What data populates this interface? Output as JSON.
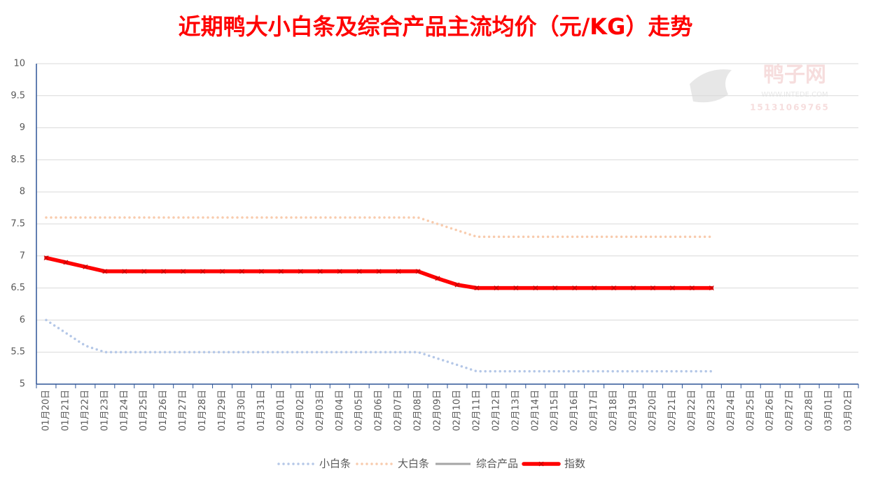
{
  "chart_data": {
    "type": "line",
    "title": "近期鸭大小白条及综合产品主流均价（元/KG）走势",
    "watermark": {
      "name": "鸭子网",
      "site": "WWW.INTEDE.COM",
      "phone": "15131069765"
    },
    "categories": [
      "01月20日",
      "01月21日",
      "01月22日",
      "01月23日",
      "01月24日",
      "01月25日",
      "01月26日",
      "01月27日",
      "01月28日",
      "01月29日",
      "01月30日",
      "01月31日",
      "02月01日",
      "02月02日",
      "02月03日",
      "02月04日",
      "02月05日",
      "02月06日",
      "02月07日",
      "02月08日",
      "02月09日",
      "02月10日",
      "02月11日",
      "02月12日",
      "02月13日",
      "02月14日",
      "02月15日",
      "02月16日",
      "02月17日",
      "02月18日",
      "02月19日",
      "02月20日",
      "02月21日",
      "02月22日",
      "02月23日",
      "02月24日",
      "02月25日",
      "02月26日",
      "02月27日",
      "02月28日",
      "03月01日",
      "03月02日"
    ],
    "series": [
      {
        "name": "小白条",
        "color": "#b4c7e7",
        "style": "dotted",
        "values": [
          6.0,
          5.8,
          5.6,
          5.5,
          5.5,
          5.5,
          5.5,
          5.5,
          5.5,
          5.5,
          5.5,
          5.5,
          5.5,
          5.5,
          5.5,
          5.5,
          5.5,
          5.5,
          5.5,
          5.5,
          5.4,
          5.3,
          5.2,
          5.2,
          5.2,
          5.2,
          5.2,
          5.2,
          5.2,
          5.2,
          5.2,
          5.2,
          5.2,
          5.2,
          5.2,
          null,
          null,
          null,
          null,
          null,
          null,
          null
        ]
      },
      {
        "name": "大白条",
        "color": "#f8cbad",
        "style": "dotted",
        "values": [
          7.6,
          7.6,
          7.6,
          7.6,
          7.6,
          7.6,
          7.6,
          7.6,
          7.6,
          7.6,
          7.6,
          7.6,
          7.6,
          7.6,
          7.6,
          7.6,
          7.6,
          7.6,
          7.6,
          7.6,
          7.5,
          7.4,
          7.3,
          7.3,
          7.3,
          7.3,
          7.3,
          7.3,
          7.3,
          7.3,
          7.3,
          7.3,
          7.3,
          7.3,
          7.3,
          null,
          null,
          null,
          null,
          null,
          null,
          null
        ]
      },
      {
        "name": "综合产品",
        "color": "#a5a5a5",
        "style": "solid",
        "values": [
          6.97,
          6.9,
          6.83,
          6.76,
          6.76,
          6.76,
          6.76,
          6.76,
          6.76,
          6.76,
          6.76,
          6.76,
          6.76,
          6.76,
          6.76,
          6.76,
          6.76,
          6.76,
          6.76,
          6.76,
          6.65,
          6.55,
          6.5,
          6.5,
          6.5,
          6.5,
          6.5,
          6.5,
          6.5,
          6.5,
          6.5,
          6.5,
          6.5,
          6.5,
          6.5,
          null,
          null,
          null,
          null,
          null,
          null,
          null
        ]
      },
      {
        "name": "指数",
        "color": "#ff0000",
        "style": "thick",
        "values": [
          6.97,
          6.9,
          6.83,
          6.76,
          6.76,
          6.76,
          6.76,
          6.76,
          6.76,
          6.76,
          6.76,
          6.76,
          6.76,
          6.76,
          6.76,
          6.76,
          6.76,
          6.76,
          6.76,
          6.76,
          6.65,
          6.55,
          6.5,
          6.5,
          6.5,
          6.5,
          6.5,
          6.5,
          6.5,
          6.5,
          6.5,
          6.5,
          6.5,
          6.5,
          6.5,
          null,
          null,
          null,
          null,
          null,
          null,
          null
        ]
      }
    ],
    "ylim": [
      5,
      10
    ],
    "yticks": [
      5,
      5.5,
      6,
      6.5,
      7,
      7.5,
      8,
      8.5,
      9,
      9.5,
      10
    ],
    "grid": true,
    "legend": "bottom"
  }
}
